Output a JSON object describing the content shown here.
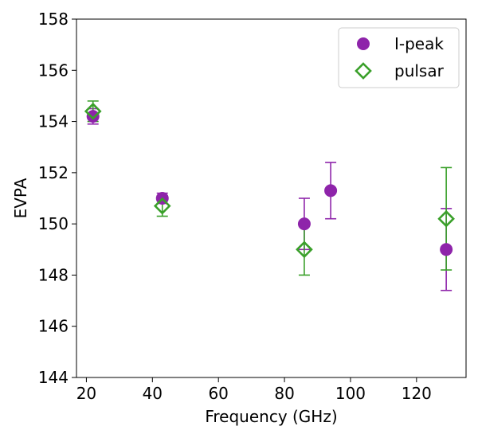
{
  "chart_data": {
    "type": "scatter",
    "title": "",
    "xlabel": "Frequency (GHz)",
    "ylabel": "EVPA",
    "xlim": [
      17,
      135
    ],
    "ylim": [
      144,
      158
    ],
    "xticks": [
      20,
      40,
      60,
      80,
      100,
      120
    ],
    "yticks": [
      144,
      146,
      148,
      150,
      152,
      154,
      156,
      158
    ],
    "legend_position": "top-right",
    "series": [
      {
        "name": "I-peak",
        "marker": "filled-circle",
        "color": "#8e24aa",
        "points": [
          {
            "x": 22,
            "y": 154.2,
            "err": 0.3
          },
          {
            "x": 43,
            "y": 151.0,
            "err": 0.2
          },
          {
            "x": 86,
            "y": 150.0,
            "err": 1.0
          },
          {
            "x": 94,
            "y": 151.3,
            "err": 1.1
          },
          {
            "x": 129,
            "y": 149.0,
            "err": 1.6
          }
        ]
      },
      {
        "name": "pulsar",
        "marker": "open-diamond",
        "color": "#3aa02a",
        "points": [
          {
            "x": 22,
            "y": 154.4,
            "err": 0.4
          },
          {
            "x": 43,
            "y": 150.7,
            "err": 0.4
          },
          {
            "x": 86,
            "y": 149.0,
            "err": 1.0
          },
          {
            "x": 129,
            "y": 150.2,
            "err": 2.0
          }
        ]
      }
    ]
  }
}
